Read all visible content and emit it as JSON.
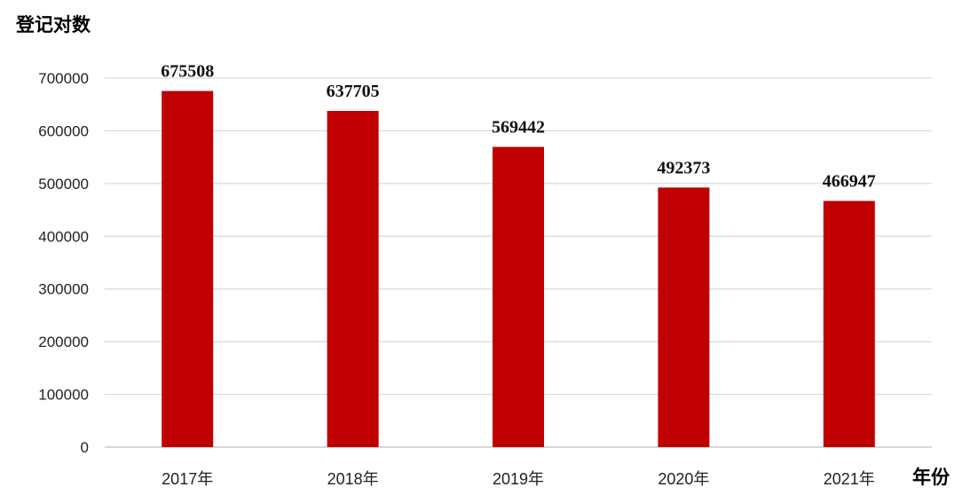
{
  "chart_data": {
    "type": "bar",
    "ylabel": "登记对数",
    "xlabel": "年份",
    "categories": [
      "2017年",
      "2018年",
      "2019年",
      "2020年",
      "2021年"
    ],
    "values": [
      675508,
      637705,
      569442,
      492373,
      466947
    ],
    "ylim": [
      0,
      700000
    ],
    "yticks": [
      "0",
      "100000",
      "200000",
      "300000",
      "400000",
      "500000",
      "600000",
      "700000"
    ],
    "grid": true,
    "bar_color": "#C00000"
  }
}
